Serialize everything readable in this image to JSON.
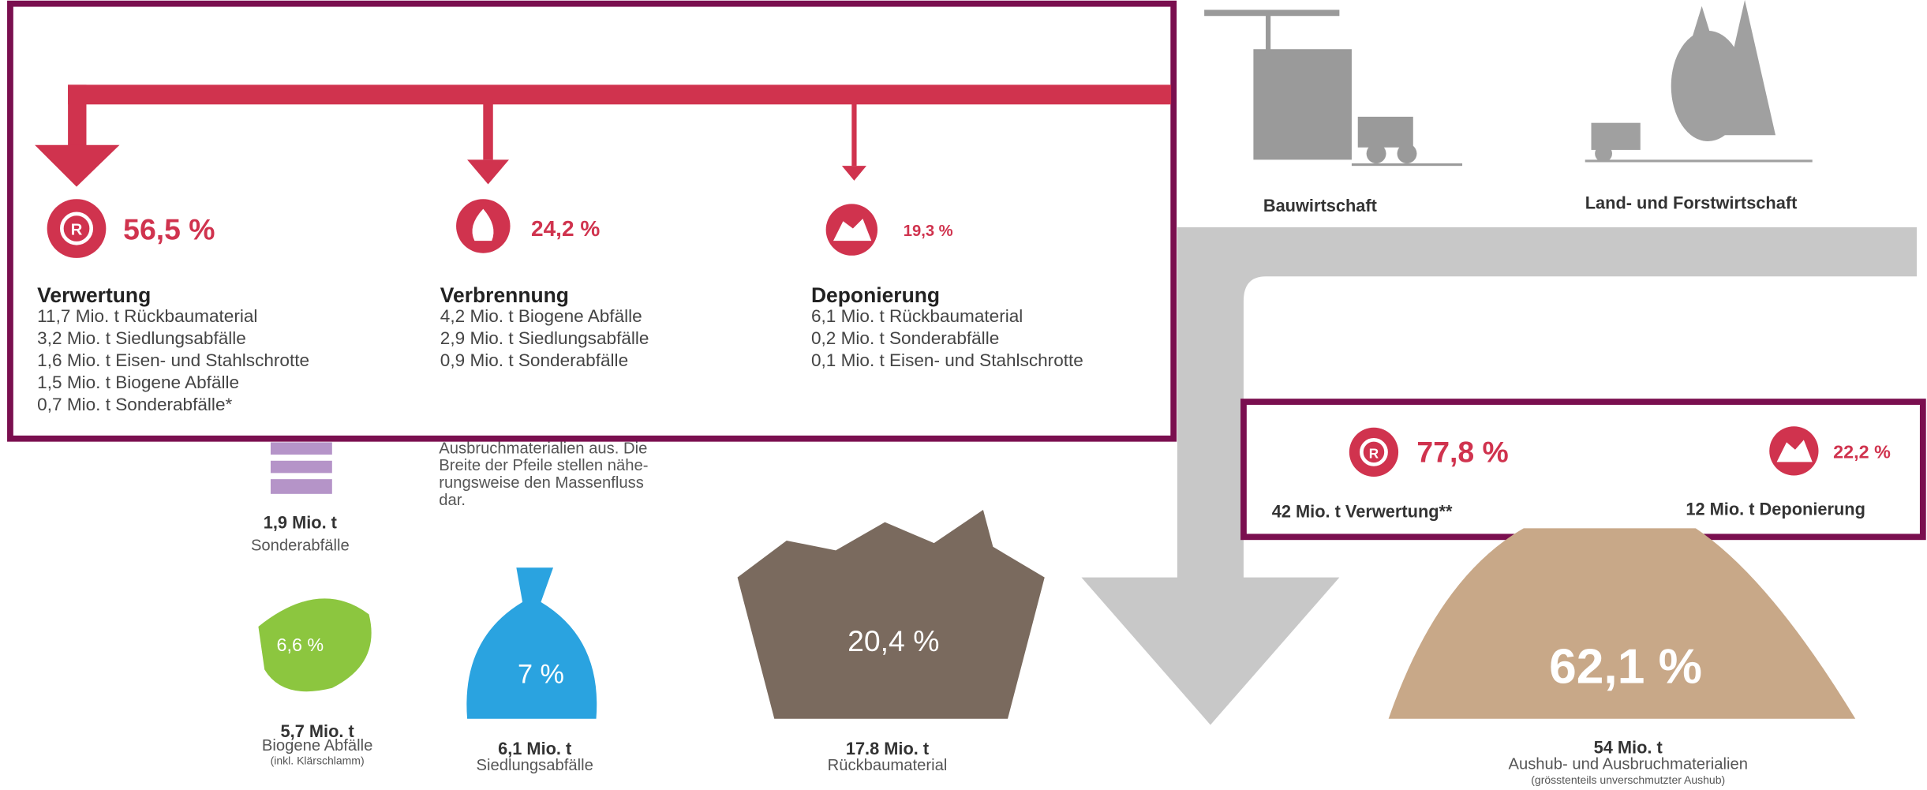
{
  "left_panel": {
    "columns": [
      {
        "percent": "56,5 %",
        "title": "Verwertung",
        "items": [
          "11,7  Mio. t Rückbaumaterial",
          "3,2  Mio. t Siedlungsabfälle",
          "1,6  Mio. t Eisen- und Stahlschrotte",
          "1,5  Mio. t Biogene Abfälle",
          "0,7  Mio. t Sonderabfälle*"
        ]
      },
      {
        "percent": "24,2 %",
        "title": "Verbrennung",
        "items": [
          "4,2 Mio. t Biogene Abfälle",
          "2,9 Mio. t Siedlungsabfälle",
          "0,9 Mio. t Sonderabfälle"
        ]
      },
      {
        "percent": "19,3 %",
        "title": "Deponierung",
        "items": [
          "6,1 Mio. t Rückbaumaterial",
          "0,2 Mio. t Sonderabfälle",
          "0,1 Mio. t Eisen- und Stahlschrotte"
        ]
      }
    ]
  },
  "sectors": [
    "Bauwirtschaft",
    "Land- und Forstwirtschaft"
  ],
  "right_panel": {
    "recycling_percent": "77,8 %",
    "landfill_percent": "22,2 %",
    "recycling_label": "42 Mio. t Verwertung**",
    "landfill_label": "12 Mio. t Deponierung"
  },
  "note_lines": [
    "Ausbruchmaterialien aus. Die",
    "Breite der Pfeile stellen nähe-",
    "rungsweise den Massenfluss",
    "dar."
  ],
  "waste_types": [
    {
      "amount": "1,9 Mio. t",
      "name": "Sonderabfälle"
    },
    {
      "percent": "6,6 %",
      "amount": "5,7 Mio. t",
      "name": "Biogene Abfälle",
      "note": "(inkl. Klärschlamm)"
    },
    {
      "percent": "7 %",
      "amount": "6,1 Mio. t",
      "name": "Siedlungsabfälle"
    },
    {
      "percent": "20,4 %",
      "amount": "17.8 Mio. t",
      "name": "Rückbaumaterial"
    },
    {
      "percent": "62,1 %",
      "amount": "54 Mio. t",
      "name": "Aushub- und Ausbruchmaterialien",
      "note": "(grösstenteils unverschmutzter Aushub)"
    }
  ]
}
